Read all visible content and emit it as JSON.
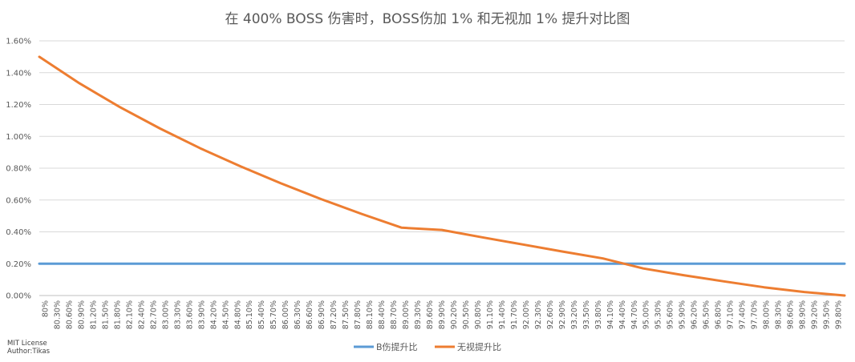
{
  "chart_data": {
    "type": "line",
    "title": "在 400% BOSS 伤害时，BOSS伤加 1% 和无视加 1% 提升对比图",
    "xlabel": "",
    "ylabel": "",
    "ylim": [
      0,
      0.016
    ],
    "yticks": [
      "0.00%",
      "0.20%",
      "0.40%",
      "0.60%",
      "0.80%",
      "1.00%",
      "1.20%",
      "1.40%",
      "1.60%"
    ],
    "grid": true,
    "legend": "bottom",
    "x_start": 0.8,
    "x_end": 1.0,
    "xticks": [
      "80%",
      "80.30%",
      "80.60%",
      "80.90%",
      "81.20%",
      "81.50%",
      "81.80%",
      "82.10%",
      "82.40%",
      "82.70%",
      "83.00%",
      "83.30%",
      "83.60%",
      "83.90%",
      "84.20%",
      "84.50%",
      "84.80%",
      "85.10%",
      "85.40%",
      "85.70%",
      "86.00%",
      "86.30%",
      "86.60%",
      "86.90%",
      "87.20%",
      "87.50%",
      "87.80%",
      "88.10%",
      "88.40%",
      "88.70%",
      "89.00%",
      "89.30%",
      "89.60%",
      "89.90%",
      "90.20%",
      "90.50%",
      "90.80%",
      "91.10%",
      "91.40%",
      "91.70%",
      "92.00%",
      "92.30%",
      "92.60%",
      "92.90%",
      "93.20%",
      "93.50%",
      "93.80%",
      "94.10%",
      "94.40%",
      "94.70%",
      "95.00%",
      "95.30%",
      "95.60%",
      "95.90%",
      "96.20%",
      "96.50%",
      "96.80%",
      "97.10%",
      "97.40%",
      "97.70%",
      "98.00%",
      "98.30%",
      "98.60%",
      "98.90%",
      "99.20%",
      "99.50%",
      "99.80%"
    ],
    "series": [
      {
        "name": "B伤提升比",
        "color": "#5b9bd5",
        "x": [
          0.8,
          0.85,
          0.9,
          0.95,
          1.0
        ],
        "y": [
          0.002,
          0.002,
          0.002,
          0.002,
          0.002
        ]
      },
      {
        "name": "无视提升比",
        "color": "#ed7d31",
        "x": [
          0.8,
          0.81,
          0.82,
          0.83,
          0.84,
          0.85,
          0.86,
          0.87,
          0.88,
          0.89,
          0.9,
          0.91,
          0.92,
          0.93,
          0.94,
          0.95,
          0.96,
          0.97,
          0.98,
          0.99,
          1.0
        ],
        "y": [
          0.015,
          0.01333,
          0.01184,
          0.01049,
          0.00925,
          0.00811,
          0.00705,
          0.00606,
          0.00513,
          0.00426,
          0.00412,
          0.00366,
          0.00321,
          0.00276,
          0.00233,
          0.0017,
          0.00128,
          0.00089,
          0.00052,
          0.00022,
          0.0
        ]
      }
    ]
  },
  "footer": {
    "license_line1": "MIT License",
    "license_line2": "Author:Tikas"
  }
}
